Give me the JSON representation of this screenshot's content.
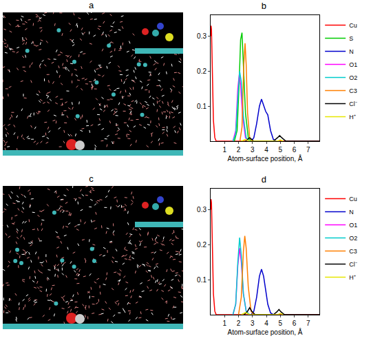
{
  "images": [
    {
      "title": "a"
    },
    {
      "title": "c"
    }
  ],
  "chart_data": [
    {
      "type": "line",
      "title": "b",
      "x_label": "Atom-surface position, Å",
      "xlim": [
        0,
        7.8
      ],
      "xticks": [
        1,
        2,
        3,
        4,
        5,
        6,
        7
      ],
      "ylim": [
        0,
        0.36
      ],
      "yticks": [
        0.1,
        0.2,
        0.3
      ],
      "grid": false,
      "legend": "right",
      "series": [
        {
          "name": "Cu",
          "color": "#ff0000",
          "x": [
            0,
            0.03,
            0.06,
            0.1,
            0.15,
            0.2,
            0.3,
            0.4,
            7.8
          ],
          "values": [
            0.3,
            0.33,
            0.32,
            0.25,
            0.14,
            0.06,
            0.01,
            0,
            0
          ]
        },
        {
          "name": "S",
          "color": "#00cc00",
          "x": [
            1.7,
            1.9,
            2.05,
            2.15,
            2.25,
            2.35,
            2.5,
            2.7,
            2.9
          ],
          "values": [
            0,
            0.03,
            0.17,
            0.29,
            0.31,
            0.22,
            0.08,
            0.01,
            0
          ]
        },
        {
          "name": "N",
          "color": "#0000cc",
          "x": [
            2.9,
            3.1,
            3.3,
            3.5,
            3.65,
            3.8,
            3.95,
            4.1,
            4.3,
            4.5,
            4.7
          ],
          "values": [
            0,
            0.01,
            0.05,
            0.1,
            0.12,
            0.1,
            0.085,
            0.075,
            0.03,
            0.005,
            0
          ]
        },
        {
          "name": "O1",
          "color": "#ff00ff",
          "x": [
            1.6,
            1.8,
            1.95,
            2.05,
            2.15,
            2.3,
            2.5,
            2.7
          ],
          "values": [
            0,
            0.03,
            0.15,
            0.19,
            0.16,
            0.07,
            0.01,
            0
          ]
        },
        {
          "name": "O2",
          "color": "#00cccc",
          "x": [
            1.6,
            1.8,
            1.95,
            2.08,
            2.2,
            2.35,
            2.55,
            2.8
          ],
          "values": [
            0,
            0.02,
            0.12,
            0.2,
            0.17,
            0.07,
            0.01,
            0
          ]
        },
        {
          "name": "C3",
          "color": "#ff7f00",
          "x": [
            2.1,
            2.25,
            2.38,
            2.47,
            2.55,
            2.65,
            2.8,
            3.0
          ],
          "values": [
            0,
            0.04,
            0.22,
            0.28,
            0.22,
            0.08,
            0.01,
            0
          ]
        },
        {
          "name": "Cl⁻",
          "color": "#000000",
          "x": [
            2.5,
            2.8,
            3.1,
            3.5,
            4.5,
            4.8,
            4.95,
            5.1,
            5.4,
            7.8
          ],
          "values": [
            0,
            0.01,
            0,
            0,
            0,
            0.01,
            0.016,
            0.01,
            0,
            0
          ]
        },
        {
          "name": "H⁺",
          "color": "#e6e600",
          "x": [
            2.2,
            2.5,
            2.8,
            3.5,
            4.8,
            5.0,
            5.2
          ],
          "values": [
            0,
            0.005,
            0,
            0,
            0,
            0.004,
            0
          ]
        }
      ]
    },
    {
      "type": "line",
      "title": "d",
      "x_label": "Atom-surface position, Å",
      "xlim": [
        0,
        7.8
      ],
      "xticks": [
        1,
        2,
        3,
        4,
        5,
        6,
        7
      ],
      "ylim": [
        0,
        0.36
      ],
      "yticks": [
        0.1,
        0.2,
        0.3
      ],
      "grid": false,
      "legend": "right",
      "series": [
        {
          "name": "Cu",
          "color": "#ff0000",
          "x": [
            0,
            0.03,
            0.06,
            0.1,
            0.15,
            0.2,
            0.3,
            0.4,
            7.8
          ],
          "values": [
            0.3,
            0.33,
            0.32,
            0.25,
            0.14,
            0.06,
            0.01,
            0,
            0
          ]
        },
        {
          "name": "N",
          "color": "#0000cc",
          "x": [
            2.9,
            3.1,
            3.3,
            3.5,
            3.65,
            3.8,
            3.95,
            4.1,
            4.3,
            4.5
          ],
          "values": [
            0,
            0.01,
            0.05,
            0.11,
            0.13,
            0.11,
            0.07,
            0.03,
            0.005,
            0
          ]
        },
        {
          "name": "O1",
          "color": "#ff00ff",
          "x": [
            1.6,
            1.8,
            1.95,
            2.08,
            2.2,
            2.35,
            2.55,
            2.8
          ],
          "values": [
            0,
            0.03,
            0.14,
            0.19,
            0.15,
            0.06,
            0.01,
            0
          ]
        },
        {
          "name": "O2",
          "color": "#00cccc",
          "x": [
            1.6,
            1.8,
            1.95,
            2.08,
            2.2,
            2.35,
            2.55,
            2.8
          ],
          "values": [
            0,
            0.03,
            0.15,
            0.22,
            0.17,
            0.06,
            0.01,
            0
          ]
        },
        {
          "name": "C3",
          "color": "#ff7f00",
          "x": [
            2.0,
            2.2,
            2.35,
            2.45,
            2.55,
            2.7,
            2.9,
            3.1
          ],
          "values": [
            0,
            0.05,
            0.18,
            0.225,
            0.19,
            0.08,
            0.01,
            0
          ]
        },
        {
          "name": "Cl⁻",
          "color": "#000000",
          "x": [
            2.4,
            2.65,
            2.8,
            2.95,
            3.2,
            4.5,
            4.75,
            4.9,
            5.05,
            5.3,
            7.8
          ],
          "values": [
            0,
            0.01,
            0.02,
            0.01,
            0,
            0,
            0.008,
            0.015,
            0.008,
            0,
            0
          ]
        },
        {
          "name": "H⁺",
          "color": "#e6e600",
          "x": [
            2.2,
            2.5,
            2.8,
            3.5,
            4.8,
            5.0,
            5.2
          ],
          "values": [
            0,
            0.006,
            0,
            0,
            0,
            0.004,
            0
          ]
        }
      ]
    }
  ]
}
